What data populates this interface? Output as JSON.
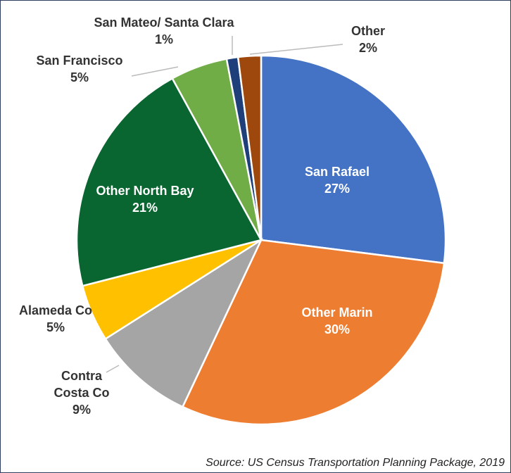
{
  "chart_data": {
    "type": "pie",
    "source": "Source: US Census Transportation Planning Package, 2019",
    "categories": [
      "San Rafael",
      "Other Marin",
      "Contra Costa Co",
      "Alameda Co",
      "Other North Bay",
      "San Francisco",
      "San Mateo/ Santa Clara",
      "Other"
    ],
    "values": [
      27,
      30,
      9,
      5,
      21,
      5,
      1,
      2
    ],
    "value_labels": [
      "27%",
      "30%",
      "9%",
      "5%",
      "21%",
      "5%",
      "1%",
      "2%"
    ],
    "colors": [
      "#4472c4",
      "#ed7d31",
      "#a5a5a5",
      "#ffc000",
      "#0a6630",
      "#70ad47",
      "#1f3f7a",
      "#9e480e"
    ]
  }
}
